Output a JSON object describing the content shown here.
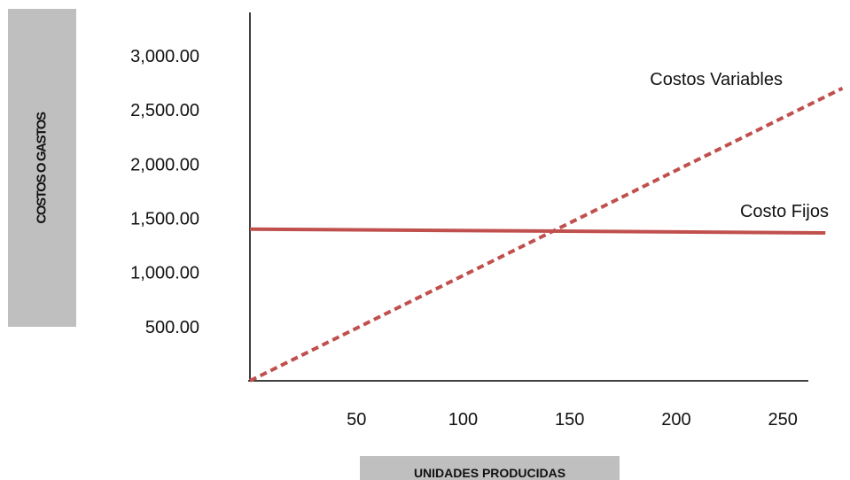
{
  "chart_data": {
    "type": "line",
    "xlabel": "UNIDADES PRODUCIDAS",
    "ylabel": "COSTOS O GASTOS",
    "x_ticks": [
      50,
      100,
      150,
      200,
      250
    ],
    "y_ticks": [
      "500.00",
      "1,000.00",
      "1,500.00",
      "2,000.00",
      "2,500.00",
      "3,000.00"
    ],
    "xlim": [
      0,
      262
    ],
    "ylim": [
      0,
      3400
    ],
    "grid": false,
    "legend": "none",
    "series": [
      {
        "name": "Costo Fijos",
        "color": "#c0504d",
        "dash": "solid",
        "points": [
          [
            0,
            1400
          ],
          [
            270,
            1365
          ]
        ]
      },
      {
        "name": "Costos Variables",
        "color": "#c0504d",
        "dash": "dashed",
        "points": [
          [
            0,
            0
          ],
          [
            278,
            2700
          ]
        ]
      }
    ]
  }
}
